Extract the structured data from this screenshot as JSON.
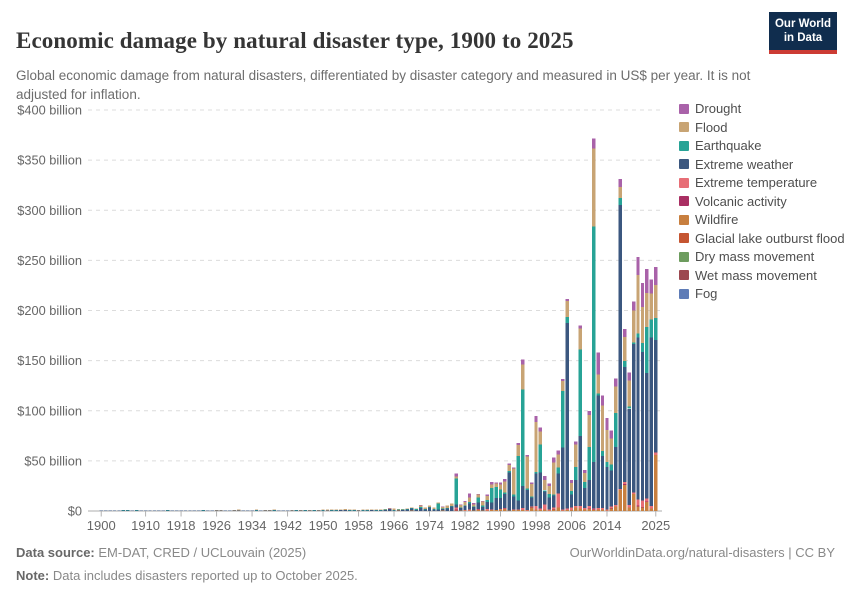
{
  "header": {
    "title": "Economic damage by natural disaster type, 1900 to 2025",
    "subtitle": "Global economic damage from natural disasters, differentiated by disaster category and measured in US$ per year. It is not adjusted for inflation.",
    "logo": {
      "line1": "Our World",
      "line2": "in Data"
    }
  },
  "footer": {
    "source_label": "Data source:",
    "source_value": "EM-DAT, CRED / UCLouvain (2025)",
    "rights": "OurWorldinData.org/natural-disasters | CC BY",
    "note_label": "Note:",
    "note_value": "Data includes disasters reported up to October 2025."
  },
  "chart_data": {
    "type": "bar",
    "stacked": true,
    "title": "Economic damage by natural disaster type, 1900 to 2025",
    "unit": "US$ billion per year (nominal, not inflation adjusted)",
    "grid": "dashed horizontal gridlines",
    "legend_position": "right",
    "x_start": 1900,
    "x_end": 2025,
    "x_tick_years": [
      1900,
      1910,
      1918,
      1926,
      1934,
      1942,
      1950,
      1958,
      1966,
      1974,
      1982,
      1990,
      1998,
      2006,
      2014,
      2025
    ],
    "ylim": [
      0,
      400
    ],
    "y_ticks": [
      {
        "value": 0,
        "label": "$0"
      },
      {
        "value": 50,
        "label": "$50 billion"
      },
      {
        "value": 100,
        "label": "$100 billion"
      },
      {
        "value": 150,
        "label": "$150 billion"
      },
      {
        "value": 200,
        "label": "$200 billion"
      },
      {
        "value": 250,
        "label": "$250 billion"
      },
      {
        "value": 300,
        "label": "$300 billion"
      },
      {
        "value": 350,
        "label": "$350 billion"
      },
      {
        "value": 400,
        "label": "$400 billion"
      }
    ],
    "values_unit": "US$ billion (estimated from chart pixels)",
    "series": [
      {
        "name": "Drought",
        "color": "#a962a9",
        "values": [
          0,
          0,
          0,
          0,
          0,
          0,
          0,
          0,
          0,
          0,
          0,
          0,
          0,
          0,
          0,
          0,
          0,
          0,
          0,
          0,
          0,
          0,
          0,
          0,
          0,
          0,
          0,
          0,
          0,
          0,
          0,
          0,
          0,
          0,
          0,
          0,
          0,
          0,
          0,
          0,
          0,
          0,
          0,
          0,
          0,
          0,
          0,
          0,
          0,
          0,
          0,
          0,
          0,
          0,
          0,
          0,
          0,
          0,
          0,
          0,
          0,
          0,
          0,
          0,
          0,
          0.1,
          0,
          0,
          0,
          0,
          0,
          0,
          0.2,
          0,
          0,
          0,
          0,
          0.3,
          0,
          0,
          3,
          0.5,
          1,
          4,
          1.5,
          0.5,
          0.5,
          1.5,
          2.5,
          1,
          2,
          2.5,
          1.5,
          1,
          2,
          5,
          1.5,
          1.5,
          6,
          4,
          4,
          2.5,
          5,
          4,
          2,
          2,
          3,
          3,
          3,
          3,
          4,
          10,
          22,
          10,
          12,
          8,
          8,
          8,
          8,
          8,
          9,
          18,
          24,
          24,
          14,
          18
        ]
      },
      {
        "name": "Flood",
        "color": "#c8a474",
        "values": [
          0,
          0,
          0,
          0,
          0,
          0,
          0,
          0,
          0,
          0,
          0,
          0,
          0,
          0,
          0,
          0,
          0,
          0,
          0,
          0,
          0,
          0,
          0,
          0,
          0,
          0,
          0.1,
          0.35,
          0,
          0,
          0.05,
          1.4,
          0,
          0,
          0.05,
          0.1,
          0,
          0.4,
          0.1,
          0.1,
          0,
          0,
          0,
          0.05,
          0,
          0.05,
          0.05,
          0.25,
          0.05,
          0.1,
          0.2,
          0.9,
          0.1,
          0.4,
          0.8,
          0.8,
          0.1,
          0.2,
          0.1,
          0.6,
          0.2,
          0.3,
          0.2,
          0.3,
          0.3,
          0.4,
          1.3,
          0.4,
          0.5,
          0.6,
          0.6,
          0.7,
          1.2,
          1.6,
          1.2,
          1.1,
          1.1,
          1.6,
          2.2,
          2.2,
          2,
          2.6,
          3.6,
          4.5,
          2.2,
          3,
          4,
          4.2,
          3.5,
          3.2,
          5,
          11,
          6,
          26,
          11,
          25,
          32,
          12,
          50,
          13,
          10,
          8,
          32,
          13,
          10,
          16,
          8,
          22,
          21,
          9,
          32,
          78,
          19,
          45,
          32,
          26,
          26,
          11,
          24,
          26,
          32,
          58,
          36,
          34,
          26,
          33
        ]
      },
      {
        "name": "Earthquake",
        "color": "#27a396",
        "values": [
          0,
          0,
          0.02,
          0,
          0,
          0.1,
          0.53,
          0,
          0.12,
          0,
          0,
          0,
          0,
          0,
          0,
          0.06,
          0,
          0.03,
          0,
          0,
          0.03,
          0,
          0,
          0.62,
          0,
          0,
          0,
          0.03,
          0,
          0,
          0.02,
          0,
          0.01,
          0.05,
          0,
          0.05,
          0,
          0,
          0,
          0.13,
          0.02,
          0,
          0,
          0.01,
          0.05,
          0,
          0.01,
          0,
          0.03,
          0,
          0.02,
          0,
          0.06,
          0.02,
          0,
          0,
          0.01,
          0.04,
          0,
          0.01,
          0.55,
          0,
          0.05,
          0.05,
          0.54,
          0.03,
          0.13,
          0.06,
          0.13,
          0.07,
          0.27,
          0.56,
          0.85,
          0.05,
          0.1,
          0.35,
          6.1,
          0.35,
          0.15,
          0.13,
          26,
          0.3,
          0.4,
          1.5,
          0.3,
          5.2,
          1.6,
          2.2,
          14.5,
          11,
          8.5,
          1.2,
          1.5,
          2,
          44,
          96,
          1.5,
          1.2,
          1.5,
          28,
          1,
          3.5,
          1,
          6,
          56,
          6,
          3.5,
          13,
          86,
          6,
          33,
          235,
          2,
          5,
          5,
          6,
          34,
          7,
          6,
          2,
          1.5,
          4,
          9,
          46,
          18,
          22
        ]
      },
      {
        "name": "Extreme weather",
        "color": "#3b577f",
        "values": [
          0.03,
          0.02,
          0.02,
          0.05,
          0.02,
          0.02,
          0.05,
          0.02,
          0.03,
          0.1,
          0.03,
          0.02,
          0.05,
          0.02,
          0.02,
          0.12,
          0.05,
          0.02,
          0.03,
          0.1,
          0.02,
          0.03,
          0.05,
          0.03,
          0.03,
          0.05,
          0.18,
          0.05,
          0.14,
          0.05,
          0.05,
          0.03,
          0.05,
          0.05,
          0.06,
          0.12,
          0.08,
          0.05,
          0.45,
          0.05,
          0.05,
          0.05,
          0.1,
          0.05,
          0.25,
          0.2,
          0.1,
          0.2,
          0.1,
          0.15,
          0.2,
          0.2,
          0.25,
          0.25,
          0.95,
          1,
          0.3,
          0.65,
          0.25,
          0.5,
          0.7,
          0.9,
          0.6,
          0.5,
          0.8,
          1.8,
          0.7,
          0.6,
          0.8,
          1.7,
          1.9,
          1.2,
          3.2,
          1.5,
          3.6,
          1.7,
          1.5,
          1.6,
          2.6,
          4.6,
          3,
          2.6,
          4,
          6,
          3.5,
          6.5,
          3.5,
          7,
          7,
          12,
          11,
          14,
          38,
          13,
          9,
          22,
          20,
          9,
          32,
          36,
          13,
          12,
          12,
          20,
          62,
          185,
          13,
          26,
          70,
          20,
          26,
          46,
          112,
          52,
          42,
          36,
          58,
          283,
          115,
          96,
          148,
          162,
          148,
          125,
          168,
          112
        ]
      },
      {
        "name": "Extreme temperature",
        "color": "#e76e76",
        "values": [
          0,
          0,
          0,
          0,
          0,
          0,
          0,
          0,
          0,
          0,
          0,
          0,
          0,
          0,
          0,
          0,
          0,
          0,
          0,
          0,
          0,
          0,
          0,
          0,
          0,
          0,
          0,
          0,
          0,
          0,
          0,
          0,
          0,
          0,
          0,
          0,
          0,
          0,
          0,
          0,
          0,
          0,
          0,
          0,
          0,
          0,
          0,
          0,
          0,
          0,
          0,
          0,
          0,
          0,
          0,
          0,
          0,
          0,
          0,
          0,
          0,
          0,
          0,
          0,
          0,
          0,
          0,
          0,
          0,
          0,
          0,
          0,
          0,
          0,
          0,
          0,
          0,
          0,
          0,
          0,
          2,
          0,
          0.5,
          1,
          0,
          0.5,
          0,
          1.2,
          0.5,
          0,
          0.5,
          0.5,
          0,
          0.5,
          0.5,
          2,
          0.5,
          0.5,
          3.5,
          1.5,
          5,
          1,
          1.5,
          14,
          1,
          1.5,
          2.5,
          1.5,
          2.5,
          1.5,
          2.5,
          1,
          1.5,
          1.5,
          1,
          1.5,
          1.5,
          1,
          2,
          2.5,
          1.5,
          6,
          6.5,
          3,
          2.5,
          2.5
        ]
      },
      {
        "name": "Volcanic activity",
        "color": "#a92f63",
        "values": [
          0,
          0,
          0,
          0,
          0,
          0,
          0,
          0,
          0,
          0,
          0,
          0,
          0,
          0,
          0,
          0,
          0,
          0,
          0,
          0,
          0,
          0,
          0,
          0,
          0,
          0,
          0,
          0,
          0,
          0,
          0,
          0,
          0,
          0,
          0,
          0,
          0,
          0,
          0,
          0,
          0,
          0,
          0,
          0,
          0,
          0,
          0,
          0,
          0,
          0,
          0,
          0,
          0,
          0,
          0,
          0,
          0,
          0,
          0,
          0,
          0,
          0,
          0,
          0,
          0,
          0,
          0,
          0,
          0,
          0,
          0,
          0,
          0,
          0,
          0,
          0,
          0,
          0,
          0,
          0,
          0.9,
          0,
          0,
          0,
          0,
          0.25,
          0,
          0,
          0,
          0,
          0,
          0.5,
          0,
          0,
          0,
          0,
          0,
          0.1,
          0,
          0,
          0,
          0,
          0.1,
          0,
          0,
          0,
          0,
          0,
          0,
          0,
          0.5,
          0.4,
          0,
          0,
          0,
          0.3,
          0,
          0,
          0.8,
          0,
          0,
          0.8,
          0.6,
          0.3,
          0,
          0
        ]
      },
      {
        "name": "Wildfire",
        "color": "#c87f3f",
        "values": [
          0,
          0,
          0,
          0,
          0,
          0,
          0,
          0,
          0,
          0,
          0,
          0,
          0,
          0,
          0,
          0,
          0,
          0,
          0,
          0,
          0,
          0,
          0,
          0,
          0,
          0,
          0,
          0,
          0,
          0,
          0,
          0,
          0,
          0,
          0,
          0,
          0,
          0,
          0,
          0,
          0,
          0,
          0,
          0,
          0,
          0,
          0,
          0,
          0,
          0,
          0,
          0,
          0,
          0,
          0,
          0,
          0,
          0,
          0,
          0,
          0,
          0,
          0,
          0,
          0,
          0,
          0,
          0.1,
          0,
          0,
          0.1,
          0,
          0,
          0,
          0,
          0,
          0,
          0.2,
          0,
          0,
          0.2,
          0.3,
          0.3,
          0.6,
          0.2,
          0.8,
          0.3,
          0.6,
          1.1,
          1,
          1.3,
          2.2,
          0.5,
          1.1,
          1.2,
          1,
          0.5,
          3.5,
          1.7,
          0.8,
          1.7,
          0.6,
          1.5,
          3.5,
          0.5,
          1.2,
          1,
          3.6,
          2.5,
          1.6,
          2,
          1.2,
          1.5,
          1.5,
          0.7,
          2.5,
          4.5,
          21,
          26,
          3.5,
          17,
          4.5,
          3.5,
          9,
          2.5,
          56
        ]
      },
      {
        "name": "Glacial lake outburst flood",
        "color": "#c55531",
        "values": [],
        "values_note": "negligible, not visible at this scale"
      },
      {
        "name": "Dry mass movement",
        "color": "#6d9c5e",
        "values": [],
        "values_note": "negligible, not visible at this scale"
      },
      {
        "name": "Wet mass movement",
        "color": "#9c4850",
        "values": [],
        "values_note": "negligible, not visible at this scale"
      },
      {
        "name": "Fog",
        "color": "#5e7cb7",
        "values": [],
        "values_note": "negligible, not visible at this scale"
      }
    ]
  }
}
